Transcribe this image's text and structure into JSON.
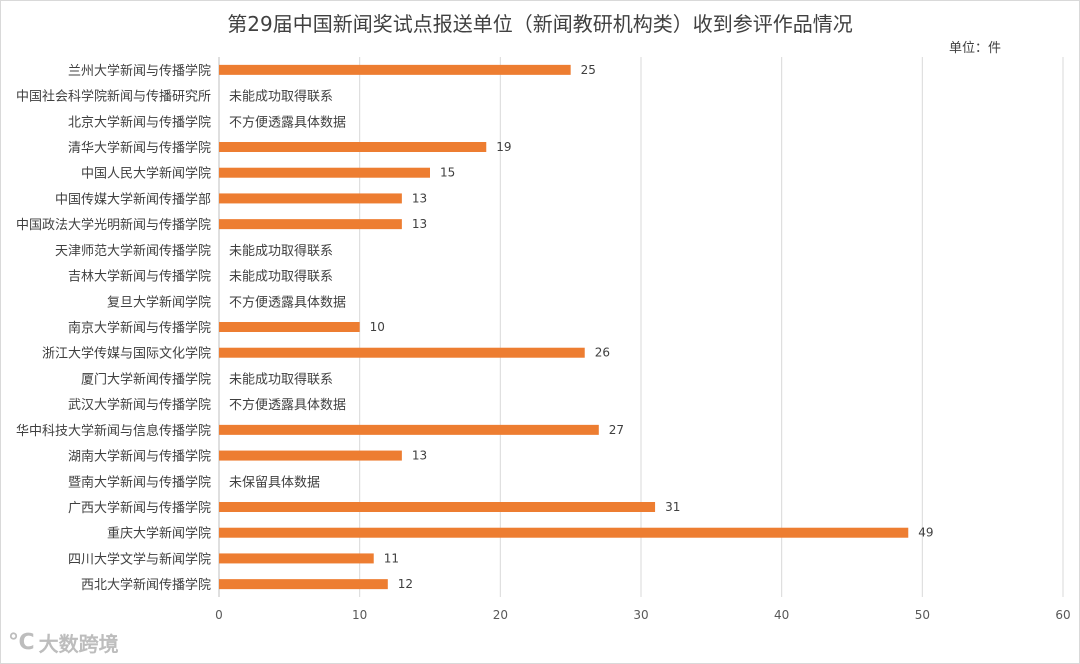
{
  "chart_data": {
    "type": "bar",
    "orientation": "horizontal",
    "title": "第29届中国新闻奖试点报送单位（新闻教研机构类）收到参评作品情况",
    "unit_label": "单位：件",
    "xlim": [
      0,
      60
    ],
    "x_ticks": [
      0,
      10,
      20,
      30,
      40,
      50,
      60
    ],
    "grid": true,
    "bar_color": "#ed7d31",
    "categories": [
      "兰州大学新闻与传播学院",
      "中国社会科学院新闻与传播研究所",
      "北京大学新闻与传播学院",
      "清华大学新闻与传播学院",
      "中国人民大学新闻学院",
      "中国传媒大学新闻传播学部",
      "中国政法大学光明新闻与传播学院",
      "天津师范大学新闻传播学院",
      "吉林大学新闻与传播学院",
      "复旦大学新闻学院",
      "南京大学新闻与传播学院",
      "浙江大学传媒与国际文化学院",
      "厦门大学新闻传播学院",
      "武汉大学新闻与传播学院",
      "华中科技大学新闻与信息传播学院",
      "湖南大学新闻与传播学院",
      "暨南大学新闻与传播学院",
      "广西大学新闻与传播学院",
      "重庆大学新闻学院",
      "四川大学文学与新闻学院",
      "西北大学新闻传播学院"
    ],
    "values": [
      25,
      null,
      null,
      19,
      15,
      13,
      13,
      null,
      null,
      null,
      10,
      26,
      null,
      null,
      27,
      13,
      null,
      31,
      49,
      11,
      12
    ],
    "notes": [
      "",
      "未能成功取得联系",
      "不方便透露具体数据",
      "",
      "",
      "",
      "",
      "未能成功取得联系",
      "未能成功取得联系",
      "不方便透露具体数据",
      "",
      "",
      "未能成功取得联系",
      "不方便透露具体数据",
      "",
      "",
      "未保留具体数据",
      "",
      "",
      "",
      ""
    ]
  },
  "watermark": {
    "icon": "big-data-logo-icon",
    "text": "大数跨境"
  }
}
